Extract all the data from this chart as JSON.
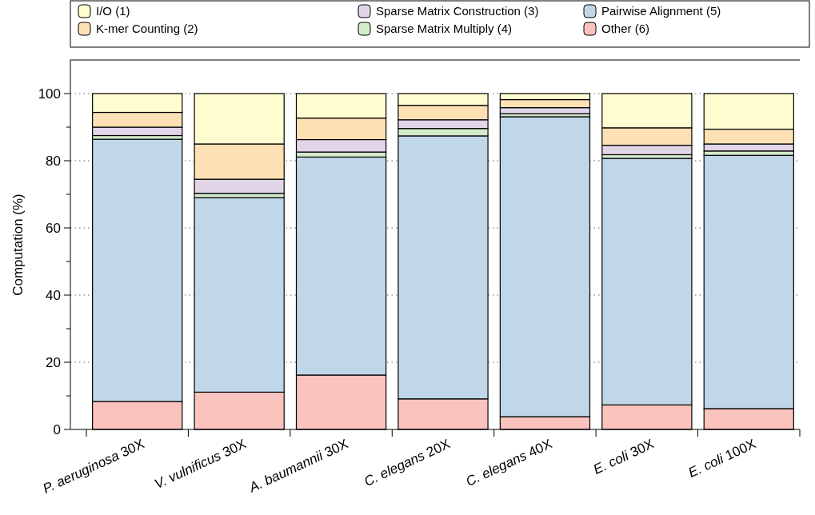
{
  "chart_data": {
    "type": "bar",
    "stacked": true,
    "ylabel": "Computation (%)",
    "categories": [
      "P. aeruginosa 30X",
      "V. vulnificus 30X",
      "A. baumannii 30X",
      "C. elegans 20X",
      "C. elegans 40X",
      "E. coli 30X",
      "E. coli 100X"
    ],
    "series": [
      {
        "name": "Other (6)",
        "color": "#fbc3bd",
        "values": [
          8.3,
          11.1,
          16.2,
          9.1,
          3.8,
          7.3,
          6.2
        ]
      },
      {
        "name": "Pairwise Alignment (5)",
        "color": "#c0d6e9",
        "values": [
          78.1,
          57.9,
          64.9,
          78.3,
          89.3,
          73.4,
          75.4
        ]
      },
      {
        "name": "Sparse Matrix Multiply (4)",
        "color": "#d2ebcc",
        "values": [
          1.1,
          1.3,
          1.5,
          2.2,
          0.9,
          1.1,
          1.3
        ]
      },
      {
        "name": "Sparse Matrix Construction (3)",
        "color": "#e2d5e8",
        "values": [
          2.5,
          4.2,
          3.7,
          2.6,
          1.8,
          2.8,
          2.1
        ]
      },
      {
        "name": "K-mer Counting (2)",
        "color": "#fde0b4",
        "values": [
          4.4,
          10.5,
          6.4,
          4.3,
          2.4,
          5.2,
          4.4
        ]
      },
      {
        "name": "I/O (1)",
        "color": "#fffdd0",
        "values": [
          5.6,
          15.0,
          7.3,
          3.5,
          1.8,
          10.2,
          10.6
        ]
      }
    ],
    "ylim": [
      0,
      110
    ],
    "yticks": [
      0,
      {
        "value": 10,
        "label": null
      },
      20,
      {
        "value": 30,
        "label": null
      },
      40,
      {
        "value": 50,
        "label": null
      },
      60,
      {
        "value": 70,
        "label": null
      },
      80,
      {
        "value": 90,
        "label": null
      },
      100
    ],
    "grid": "y",
    "legend": "top"
  }
}
